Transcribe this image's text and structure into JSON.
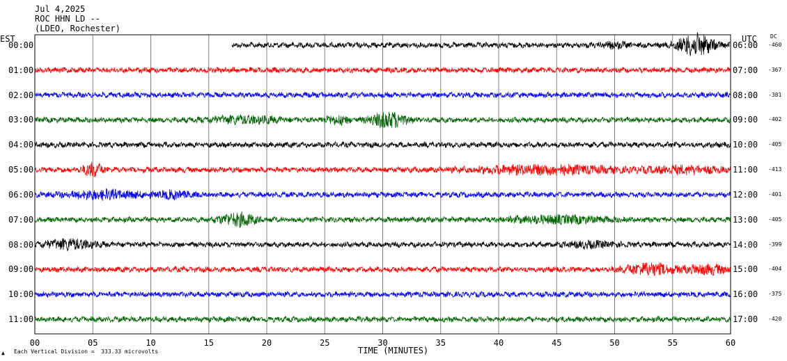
{
  "header": {
    "date": "Jul 4,2025",
    "station": "ROC HHN LD --",
    "network": "(LDEO, Rochester)"
  },
  "left_axis_label": "EST",
  "right_axis_label": "UTC",
  "dc_label": "DC",
  "footer_note": "Each Vertical Division =  333.33 microvolts",
  "footer_mark": "▲",
  "chart_data": {
    "type": "line",
    "xlabel": "TIME (MINUTES)",
    "xlim": [
      0,
      60
    ],
    "x_ticks": [
      "00",
      "05",
      "10",
      "15",
      "20",
      "25",
      "30",
      "35",
      "40",
      "45",
      "50",
      "55",
      "60"
    ],
    "rows": [
      {
        "est": "00:00",
        "utc": "06:00",
        "dc": "-460",
        "color": "#000000",
        "start": 17
      },
      {
        "est": "01:00",
        "utc": "07:00",
        "dc": "-367",
        "color": "#ff0000",
        "start": 0
      },
      {
        "est": "02:00",
        "utc": "08:00",
        "dc": "-381",
        "color": "#0000ff",
        "start": 0
      },
      {
        "est": "03:00",
        "utc": "09:00",
        "dc": "-402",
        "color": "#006400",
        "start": 0
      },
      {
        "est": "04:00",
        "utc": "10:00",
        "dc": "-405",
        "color": "#000000",
        "start": 0
      },
      {
        "est": "05:00",
        "utc": "11:00",
        "dc": "-413",
        "color": "#ff0000",
        "start": 0
      },
      {
        "est": "06:00",
        "utc": "12:00",
        "dc": "-401",
        "color": "#0000ff",
        "start": 0
      },
      {
        "est": "07:00",
        "utc": "13:00",
        "dc": "-405",
        "color": "#006400",
        "start": 0
      },
      {
        "est": "08:00",
        "utc": "14:00",
        "dc": "-399",
        "color": "#000000",
        "start": 0
      },
      {
        "est": "09:00",
        "utc": "15:00",
        "dc": "-404",
        "color": "#ff0000",
        "start": 0
      },
      {
        "est": "10:00",
        "utc": "16:00",
        "dc": "-375",
        "color": "#0000ff",
        "start": 0
      },
      {
        "est": "11:00",
        "utc": "17:00",
        "dc": "-420",
        "color": "#006400",
        "start": 0
      }
    ]
  }
}
